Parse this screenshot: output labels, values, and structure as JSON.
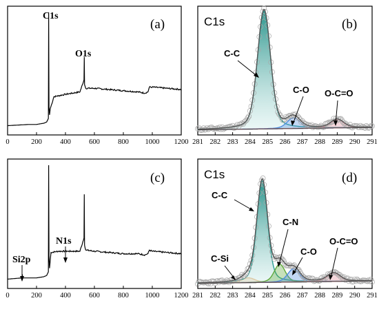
{
  "chart_data": [
    {
      "type": "line",
      "panel": "(a)",
      "xlim": [
        0,
        1200
      ],
      "xticks": [
        0,
        200,
        400,
        600,
        800,
        1000,
        1200
      ],
      "series": [
        {
          "x": [
            0,
            150,
            200,
            250,
            270,
            282,
            284,
            286,
            290,
            295,
            320,
            400,
            500,
            528,
            530,
            532,
            540,
            600,
            700,
            800,
            900,
            950,
            970,
            980,
            1000,
            1100,
            1200
          ],
          "y": [
            0.06,
            0.07,
            0.07,
            0.08,
            0.09,
            0.12,
            1.0,
            0.22,
            0.15,
            0.2,
            0.3,
            0.32,
            0.34,
            0.44,
            0.63,
            0.4,
            0.37,
            0.37,
            0.36,
            0.35,
            0.34,
            0.33,
            0.34,
            0.38,
            0.38,
            0.37,
            0.36
          ]
        }
      ],
      "annotations": [
        {
          "text": "C1s",
          "x": 285,
          "y": 1.0
        },
        {
          "text": "O1s",
          "x": 531,
          "y": 0.63
        }
      ]
    },
    {
      "type": "line",
      "panel": "(b)",
      "title": "C1s",
      "xlim": [
        281,
        291
      ],
      "xticks": [
        281,
        282,
        283,
        284,
        285,
        286,
        287,
        288,
        289,
        290,
        291
      ],
      "components": [
        {
          "name": "C-C",
          "center": 284.8,
          "height": 1.0,
          "width": 0.6,
          "color": "#2a9d93"
        },
        {
          "name": "C-O",
          "center": 286.5,
          "height": 0.09,
          "width": 0.6,
          "color": "#4f8de0"
        },
        {
          "name": "O-C=O",
          "center": 289.0,
          "height": 0.07,
          "width": 0.6,
          "color": "#e28a98"
        }
      ]
    },
    {
      "type": "line",
      "panel": "(c)",
      "xlim": [
        0,
        1200
      ],
      "xticks": [
        0,
        200,
        400,
        600,
        800,
        1000,
        1200
      ],
      "series": [
        {
          "x": [
            0,
            100,
            102,
            104,
            150,
            200,
            250,
            270,
            282,
            284,
            286,
            290,
            300,
            350,
            400,
            450,
            500,
            528,
            530,
            532,
            540,
            600,
            700,
            800,
            900,
            950,
            970,
            980,
            1000,
            1100,
            1200
          ],
          "y": [
            0.06,
            0.07,
            0.1,
            0.07,
            0.07,
            0.07,
            0.08,
            0.09,
            0.12,
            1.0,
            0.25,
            0.15,
            0.28,
            0.29,
            0.29,
            0.29,
            0.29,
            0.4,
            0.76,
            0.34,
            0.3,
            0.29,
            0.28,
            0.27,
            0.27,
            0.26,
            0.27,
            0.3,
            0.29,
            0.28,
            0.27
          ]
        }
      ],
      "annotations": [
        {
          "text": "Si2p",
          "x": 101,
          "y": 0.1
        },
        {
          "text": "N1s",
          "x": 400,
          "y": 0.29
        }
      ]
    },
    {
      "type": "line",
      "panel": "(d)",
      "title": "C1s",
      "xlim": [
        281,
        291
      ],
      "xticks": [
        281,
        282,
        283,
        284,
        285,
        286,
        287,
        288,
        289,
        290,
        291
      ],
      "components": [
        {
          "name": "C-Si",
          "center": 283.9,
          "height": 0.04,
          "width": 0.6,
          "color": "#e8a35a"
        },
        {
          "name": "C-C",
          "center": 284.7,
          "height": 0.85,
          "width": 0.5,
          "color": "#2a9d93"
        },
        {
          "name": "C-N",
          "center": 285.7,
          "height": 0.15,
          "width": 0.5,
          "color": "#5ea83a"
        },
        {
          "name": "C-O",
          "center": 286.5,
          "height": 0.11,
          "width": 0.55,
          "color": "#4f8de0"
        },
        {
          "name": "O-C=O",
          "center": 288.8,
          "height": 0.07,
          "width": 0.6,
          "color": "#e28a98"
        }
      ]
    }
  ]
}
